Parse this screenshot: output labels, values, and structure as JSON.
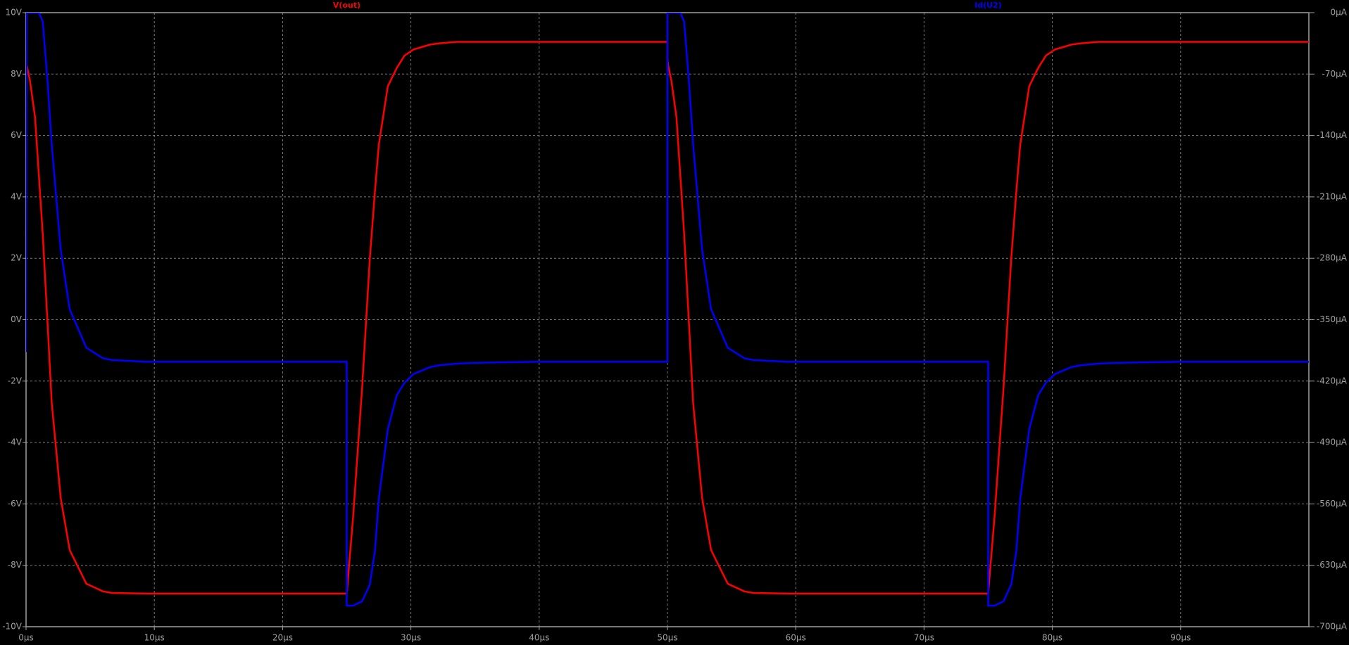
{
  "chart_data": {
    "type": "line",
    "x": [
      0,
      0.05,
      0.3,
      0.7,
      1,
      1.3,
      1.7,
      2,
      2.7,
      3.4,
      4.7,
      6,
      6.7,
      9.4,
      15,
      25,
      25,
      25.5,
      26.2,
      26.8,
      27.2,
      27.5,
      28.2,
      28.9,
      29.5,
      30.2,
      31.5,
      32.2,
      33.6,
      35.6,
      40,
      50,
      50,
      50.05,
      50.3,
      50.7,
      51,
      51.3,
      51.7,
      52,
      52.7,
      53.4,
      54.7,
      56,
      56.7,
      59.4,
      65,
      75,
      75,
      75.5,
      76.2,
      76.8,
      77.2,
      77.5,
      78.2,
      78.9,
      79.5,
      80.2,
      81.5,
      82.2,
      83.6,
      85.6,
      90,
      100
    ],
    "series": [
      {
        "name": "V(out)",
        "color": "#ff0000",
        "values": [
          8.5,
          8.3,
          7.8,
          6.6,
          4.7,
          2.8,
          -0.3,
          -2.7,
          -5.8,
          -7.5,
          -8.6,
          -8.85,
          -8.9,
          -8.92,
          -8.92,
          -8.92,
          -8.92,
          -6.4,
          -2.2,
          2,
          4.2,
          5.7,
          7.6,
          8.2,
          8.6,
          8.8,
          8.96,
          9,
          9.05,
          9.05,
          9.05,
          9.05,
          8.5,
          8.3,
          7.8,
          6.6,
          4.7,
          2.8,
          -0.3,
          -2.7,
          -5.8,
          -7.5,
          -8.6,
          -8.85,
          -8.9,
          -8.92,
          -8.92,
          -8.92,
          -8.92,
          -6.4,
          -2.2,
          2,
          4.2,
          5.7,
          7.6,
          8.2,
          8.6,
          8.8,
          8.96,
          9,
          9.05,
          9.05,
          9.05,
          9.05
        ]
      },
      {
        "name": "Id(U2)",
        "color": "#0000ff",
        "axis": "y2",
        "values": [
          -387,
          0,
          0,
          0,
          0,
          -10,
          -83,
          -150,
          -270,
          -338,
          -382,
          -394,
          -396,
          -398,
          -398,
          -398,
          -676,
          -676,
          -671,
          -652,
          -613,
          -554,
          -475,
          -436,
          -422,
          -412,
          -404,
          -402,
          -400,
          -399,
          -398,
          -398,
          0,
          0,
          0,
          0,
          0,
          -10,
          -83,
          -150,
          -270,
          -338,
          -382,
          -394,
          -396,
          -398,
          -398,
          -398,
          -676,
          -676,
          -671,
          -652,
          -613,
          -554,
          -475,
          -436,
          -422,
          -412,
          -404,
          -402,
          -400,
          -399,
          -398,
          -398
        ]
      }
    ],
    "xlim": [
      0,
      100
    ],
    "xticks": [
      {
        "value": 0,
        "label": "0µs"
      },
      {
        "value": 10,
        "label": "10µs"
      },
      {
        "value": 20,
        "label": "20µs"
      },
      {
        "value": 30,
        "label": "30µs"
      },
      {
        "value": 40,
        "label": "40µs"
      },
      {
        "value": 50,
        "label": "50µs"
      },
      {
        "value": 60,
        "label": "60µs"
      },
      {
        "value": 70,
        "label": "70µs"
      },
      {
        "value": 80,
        "label": "80µs"
      },
      {
        "value": 90,
        "label": "90µs"
      }
    ],
    "ylim": [
      -10,
      10
    ],
    "yticks": [
      {
        "value": 10,
        "label": "10V"
      },
      {
        "value": 8,
        "label": "8V"
      },
      {
        "value": 6,
        "label": "6V"
      },
      {
        "value": 4,
        "label": "4V"
      },
      {
        "value": 2,
        "label": "2V"
      },
      {
        "value": 0,
        "label": "0V"
      },
      {
        "value": -2,
        "label": "-2V"
      },
      {
        "value": -4,
        "label": "-4V"
      },
      {
        "value": -6,
        "label": "-6V"
      },
      {
        "value": -8,
        "label": "-8V"
      },
      {
        "value": -10,
        "label": "-10V"
      }
    ],
    "y2lim": [
      -700,
      0
    ],
    "y2ticks": [
      {
        "value": 0,
        "label": "0µA"
      },
      {
        "value": -70,
        "label": "-70µA"
      },
      {
        "value": -140,
        "label": "-140µA"
      },
      {
        "value": -210,
        "label": "-210µA"
      },
      {
        "value": -280,
        "label": "-280µA"
      },
      {
        "value": -350,
        "label": "-350µA"
      },
      {
        "value": -420,
        "label": "-420µA"
      },
      {
        "value": -490,
        "label": "-490µA"
      },
      {
        "value": -560,
        "label": "-560µA"
      },
      {
        "value": -630,
        "label": "-630µA"
      },
      {
        "value": -700,
        "label": "-700µA"
      }
    ],
    "grid": true
  }
}
